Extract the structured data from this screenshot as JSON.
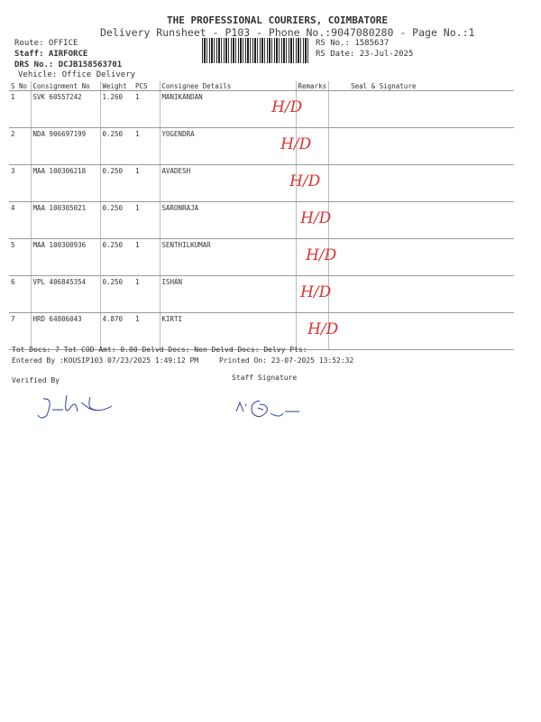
{
  "header": {
    "company": "THE PROFESSIONAL COURIERS, COIMBATORE",
    "subtitle": "Delivery Runsheet - P103 - Phone No.:9047080280 - Page No.:1",
    "route": "Route: OFFICE",
    "staff": "Staff: AIRFORCE",
    "drs": "DRS No.: DCJB158563701",
    "vehicle": "Vehicle: Office Delivery",
    "rs_no": "RS No.: 1585637",
    "rs_date": "RS Date: 23-Jul-2025"
  },
  "columns": [
    "S No",
    "Consignment No",
    "Weight",
    "PCS",
    "Consignee Details",
    "Remarks",
    "Seal & Signature"
  ],
  "rows": [
    {
      "sno": "1",
      "cn": "SVK 60557242",
      "wt": "1.260",
      "pcs": "1",
      "name": "MANIKANDAN",
      "remarks": "",
      "sig": "H/D"
    },
    {
      "sno": "2",
      "cn": "NDA 906697199",
      "wt": "0.250",
      "pcs": "1",
      "name": "YOGENDRA",
      "remarks": "",
      "sig": "H/D"
    },
    {
      "sno": "3",
      "cn": "MAA 100306218",
      "wt": "0.250",
      "pcs": "1",
      "name": "AVADESH",
      "remarks": "",
      "sig": "H/D"
    },
    {
      "sno": "4",
      "cn": "MAA 100305021",
      "wt": "0.250",
      "pcs": "1",
      "name": "SARONRAJA",
      "remarks": "",
      "sig": "H/D"
    },
    {
      "sno": "5",
      "cn": "MAA 100300936",
      "wt": "0.250",
      "pcs": "1",
      "name": "SENTHILKUMAR",
      "remarks": "",
      "sig": "H/D"
    },
    {
      "sno": "6",
      "cn": "VPL 406845354",
      "wt": "0.250",
      "pcs": "1",
      "name": "ISHAN",
      "remarks": "",
      "sig": "H/D"
    },
    {
      "sno": "7",
      "cn": "HRD 64806043",
      "wt": "4.870",
      "pcs": "1",
      "name": "KIRTI",
      "remarks": "",
      "sig": "H/D"
    }
  ],
  "footer": {
    "totals": "Tot Docs:   7   Tot COD Amt:    0.00    Delvd Docs:     Non Delvd Docs:     Delvy Pts:",
    "entered": "Entered By :KOUSIP103 07/23/2025 1:49:12 PM",
    "printed": "Printed On: 23-07-2025 13:52:32",
    "verified": "Verified By",
    "staff_sig": "Staff Signature"
  },
  "colors": {
    "handwriting_red": "#dd3333",
    "signature_blue": "#2a3aa8"
  }
}
